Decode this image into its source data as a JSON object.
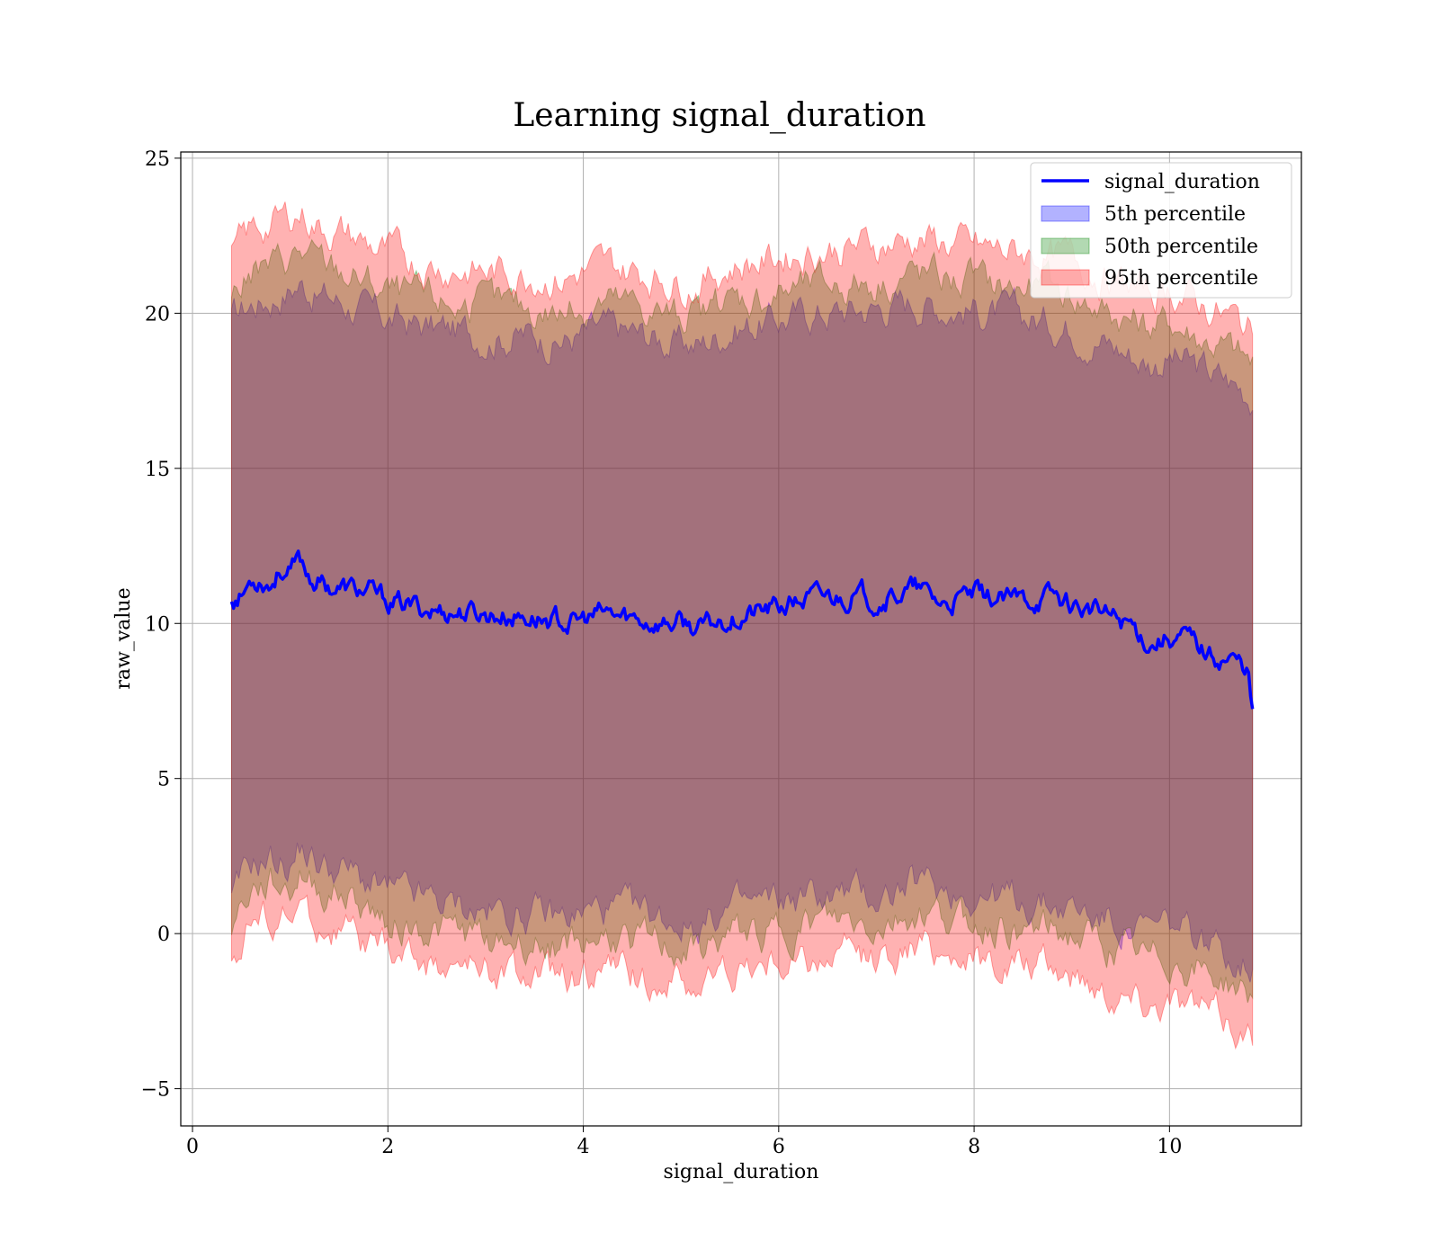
{
  "chart_data": {
    "type": "area",
    "title": "Learning signal_duration",
    "xlabel": "signal_duration",
    "ylabel": "raw_value",
    "xlim": [
      -0.12,
      11.35
    ],
    "ylim": [
      -6.2,
      25.2
    ],
    "xticks": [
      0,
      2,
      4,
      6,
      8,
      10
    ],
    "yticks": [
      -5,
      0,
      5,
      10,
      15,
      20,
      25
    ],
    "grid": true,
    "legend_position": "top-right",
    "line_series": {
      "name": "signal_duration",
      "color": "#0000ff",
      "x": [
        0.4,
        0.5,
        0.6,
        0.7,
        0.8,
        0.9,
        1.0,
        1.1,
        1.2,
        1.4,
        1.6,
        1.8,
        2.0,
        2.3,
        2.6,
        3.0,
        3.5,
        3.9,
        4.2,
        4.6,
        5.0,
        5.2,
        5.5,
        6.0,
        6.3,
        6.7,
        7.0,
        7.4,
        7.7,
        8.0,
        8.4,
        8.8,
        9.2,
        9.6,
        9.8,
        10.0,
        10.2,
        10.4,
        10.6,
        10.8,
        10.85
      ],
      "y": [
        10.8,
        10.9,
        11.4,
        11.5,
        11.3,
        11.8,
        11.6,
        12.0,
        11.5,
        11.2,
        11.1,
        11.0,
        10.7,
        10.5,
        10.4,
        10.3,
        10.2,
        10.0,
        10.3,
        10.1,
        10.0,
        9.8,
        10.2,
        10.5,
        10.8,
        10.9,
        10.8,
        11.1,
        10.6,
        10.9,
        10.7,
        10.9,
        10.4,
        10.0,
        9.4,
        9.6,
        9.5,
        9.0,
        8.9,
        8.6,
        7.0
      ]
    },
    "band_series": [
      {
        "name": "5th percentile",
        "color": "#0000ff",
        "x": [
          0.4,
          0.6,
          0.8,
          1.0,
          1.1,
          1.3,
          1.6,
          1.8,
          2.0,
          2.5,
          3.0,
          3.5,
          3.8,
          4.2,
          4.6,
          5.0,
          5.2,
          5.5,
          6.0,
          6.3,
          6.7,
          7.0,
          7.4,
          7.8,
          8.2,
          8.6,
          9.0,
          9.4,
          9.8,
          10.0,
          10.3,
          10.6,
          10.85
        ],
        "lower": [
          1.0,
          2.2,
          2.4,
          2.2,
          2.8,
          2.2,
          2.0,
          1.6,
          1.3,
          1.0,
          0.7,
          0.6,
          0.5,
          0.8,
          0.6,
          0.4,
          0.3,
          0.8,
          1.0,
          1.2,
          1.3,
          1.2,
          1.6,
          1.4,
          1.2,
          1.0,
          0.8,
          0.4,
          0.0,
          0.2,
          -0.2,
          -0.6,
          -1.0
        ],
        "upper": [
          19.8,
          20.3,
          20.5,
          20.8,
          21.0,
          20.6,
          20.3,
          20.0,
          19.8,
          19.5,
          19.3,
          19.3,
          19.1,
          19.5,
          19.3,
          19.0,
          19.0,
          19.5,
          19.8,
          20.0,
          20.1,
          20.2,
          20.4,
          20.2,
          20.0,
          19.8,
          19.6,
          19.0,
          18.4,
          18.6,
          18.2,
          17.8,
          17.4
        ]
      },
      {
        "name": "50th percentile",
        "color": "#008000",
        "x": [
          0.4,
          0.6,
          0.8,
          1.0,
          1.1,
          1.3,
          1.6,
          1.8,
          2.0,
          2.5,
          3.0,
          3.5,
          3.8,
          4.2,
          4.6,
          5.0,
          5.2,
          5.5,
          6.0,
          6.3,
          6.7,
          7.0,
          7.4,
          7.8,
          8.2,
          8.6,
          9.0,
          9.4,
          9.8,
          10.0,
          10.3,
          10.6,
          10.85
        ],
        "lower": [
          0.3,
          1.4,
          1.6,
          1.4,
          2.0,
          1.4,
          1.2,
          0.8,
          0.4,
          0.1,
          -0.2,
          -0.3,
          -0.4,
          -0.1,
          -0.3,
          -0.5,
          -0.6,
          -0.1,
          0.1,
          0.3,
          0.4,
          0.3,
          0.7,
          0.5,
          0.3,
          0.1,
          -0.1,
          -0.5,
          -1.0,
          -0.8,
          -1.2,
          -1.6,
          -2.1
        ],
        "upper": [
          20.6,
          21.3,
          21.5,
          21.8,
          22.0,
          21.6,
          21.3,
          21.0,
          20.7,
          20.4,
          20.2,
          20.2,
          20.0,
          20.4,
          20.2,
          19.9,
          19.9,
          20.4,
          20.7,
          20.9,
          21.0,
          21.1,
          21.3,
          21.1,
          20.9,
          20.8,
          20.6,
          20.0,
          19.5,
          19.7,
          19.2,
          18.8,
          18.3
        ]
      },
      {
        "name": "95th percentile",
        "color": "#ff0000",
        "x": [
          0.4,
          0.6,
          0.8,
          1.0,
          1.1,
          1.3,
          1.6,
          1.8,
          2.0,
          2.5,
          3.0,
          3.5,
          3.8,
          4.2,
          4.6,
          5.0,
          5.2,
          5.5,
          6.0,
          6.3,
          6.7,
          7.0,
          7.4,
          7.8,
          8.2,
          8.6,
          9.0,
          9.4,
          9.8,
          10.0,
          10.3,
          10.6,
          10.85
        ],
        "lower": [
          -0.8,
          0.4,
          0.6,
          0.4,
          0.9,
          0.2,
          0.0,
          -0.4,
          -0.6,
          -1.0,
          -1.2,
          -1.4,
          -1.5,
          -1.2,
          -1.4,
          -1.6,
          -1.7,
          -1.2,
          -1.0,
          -0.8,
          -0.7,
          -0.8,
          -0.4,
          -0.6,
          -0.9,
          -1.1,
          -1.3,
          -1.8,
          -2.2,
          -2.0,
          -2.4,
          -2.8,
          -3.4
        ],
        "upper": [
          21.8,
          22.6,
          22.9,
          23.1,
          23.3,
          22.8,
          22.5,
          22.2,
          21.9,
          21.5,
          21.3,
          21.3,
          21.1,
          21.5,
          21.3,
          21.0,
          21.0,
          21.5,
          21.8,
          22.0,
          22.1,
          22.2,
          22.4,
          22.2,
          22.0,
          21.9,
          21.7,
          21.1,
          20.6,
          20.8,
          20.3,
          19.9,
          19.4
        ]
      }
    ]
  }
}
